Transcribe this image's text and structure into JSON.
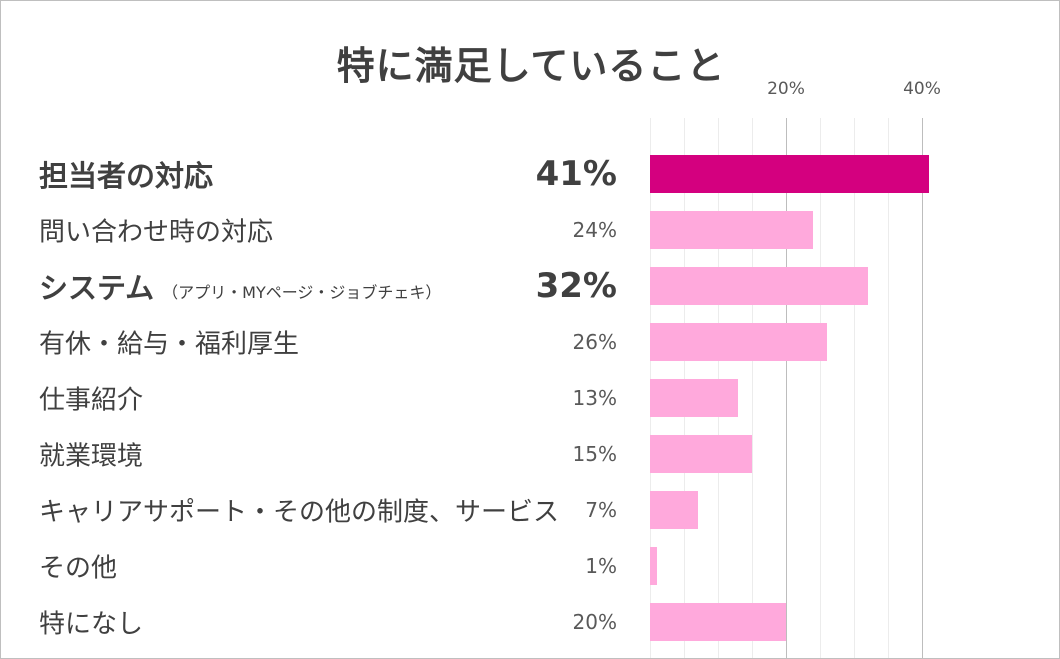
{
  "chart_data": {
    "type": "bar",
    "orientation": "horizontal",
    "title": "特に満足していること",
    "xlabel": "",
    "ylabel": "",
    "xlim": [
      0,
      50
    ],
    "x_ticks": [
      {
        "value": 0,
        "label": "",
        "major": false
      },
      {
        "value": 5,
        "label": "",
        "major": false
      },
      {
        "value": 10,
        "label": "",
        "major": false
      },
      {
        "value": 15,
        "label": "",
        "major": false
      },
      {
        "value": 20,
        "label": "20%",
        "major": true
      },
      {
        "value": 25,
        "label": "",
        "major": false
      },
      {
        "value": 30,
        "label": "",
        "major": false
      },
      {
        "value": 35,
        "label": "",
        "major": false
      },
      {
        "value": 40,
        "label": "40%",
        "major": true
      }
    ],
    "grid": true,
    "legend": "none",
    "colors": {
      "highlight": "#d4007f",
      "default": "#ffa9dc"
    },
    "bars": [
      {
        "category": "担当者の対応",
        "note": "",
        "value": 41,
        "value_label": "41%",
        "emphasis": true,
        "highlight": true
      },
      {
        "category": "問い合わせ時の対応",
        "note": "",
        "value": 24,
        "value_label": "24%",
        "emphasis": false,
        "highlight": false
      },
      {
        "category": "システム",
        "note": "（アプリ・MYページ・ジョブチェキ）",
        "value": 32,
        "value_label": "32%",
        "emphasis": true,
        "highlight": false
      },
      {
        "category": "有休・給与・福利厚生",
        "note": "",
        "value": 26,
        "value_label": "26%",
        "emphasis": false,
        "highlight": false
      },
      {
        "category": "仕事紹介",
        "note": "",
        "value": 13,
        "value_label": "13%",
        "emphasis": false,
        "highlight": false
      },
      {
        "category": "就業環境",
        "note": "",
        "value": 15,
        "value_label": "15%",
        "emphasis": false,
        "highlight": false
      },
      {
        "category": "キャリアサポート・その他の制度、サービス",
        "note": "",
        "value": 7,
        "value_label": "7%",
        "emphasis": false,
        "highlight": false
      },
      {
        "category": "その他",
        "note": "",
        "value": 1,
        "value_label": "1%",
        "emphasis": false,
        "highlight": false
      },
      {
        "category": "特になし",
        "note": "",
        "value": 20,
        "value_label": "20%",
        "emphasis": false,
        "highlight": false
      }
    ]
  }
}
